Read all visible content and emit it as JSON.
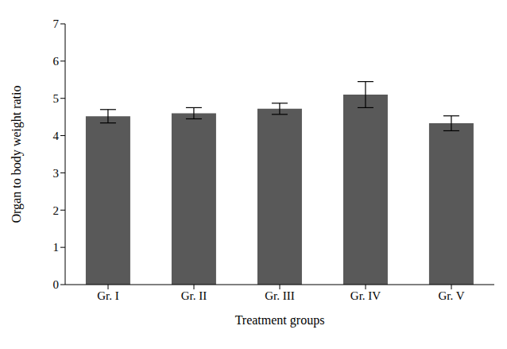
{
  "chart_data": {
    "type": "bar",
    "x_label": "Treatment groups",
    "y_label": "Organ to body weight ratio",
    "categories": [
      "Gr. I",
      "Gr. II",
      "Gr. III",
      "Gr. IV",
      "Gr. V"
    ],
    "values": [
      4.52,
      4.6,
      4.72,
      5.1,
      4.33
    ],
    "errors": [
      0.18,
      0.15,
      0.15,
      0.35,
      0.2
    ],
    "color": "#595959",
    "ylim": [
      0,
      7
    ],
    "yticks": [
      0,
      1,
      2,
      3,
      4,
      5,
      6,
      7
    ],
    "grid": false
  }
}
